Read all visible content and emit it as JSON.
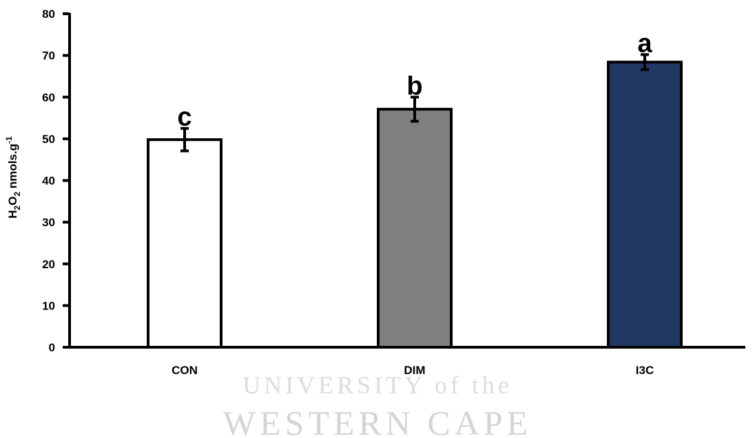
{
  "chart_data": {
    "type": "bar",
    "categories": [
      "CON",
      "DIM",
      "I3C"
    ],
    "values": [
      49.8,
      57.1,
      68.4
    ],
    "errors": [
      2.7,
      2.9,
      1.8
    ],
    "significance_letters": [
      "c",
      "b",
      "a"
    ],
    "colors": [
      "#ffffff",
      "#7f7f7f",
      "#203864"
    ],
    "ylabel": {
      "p1": "H",
      "s1": "2",
      "p2": "O",
      "s2": "2",
      "p3": " nmols.g",
      "sup": "-1"
    },
    "ylim": [
      0,
      80
    ],
    "yticks": [
      0,
      10,
      20,
      30,
      40,
      50,
      60,
      70,
      80
    ],
    "grid": false,
    "legend": "none"
  },
  "watermark": {
    "line1": "UNIVERSITY of the",
    "line2": "WESTERN CAPE"
  }
}
